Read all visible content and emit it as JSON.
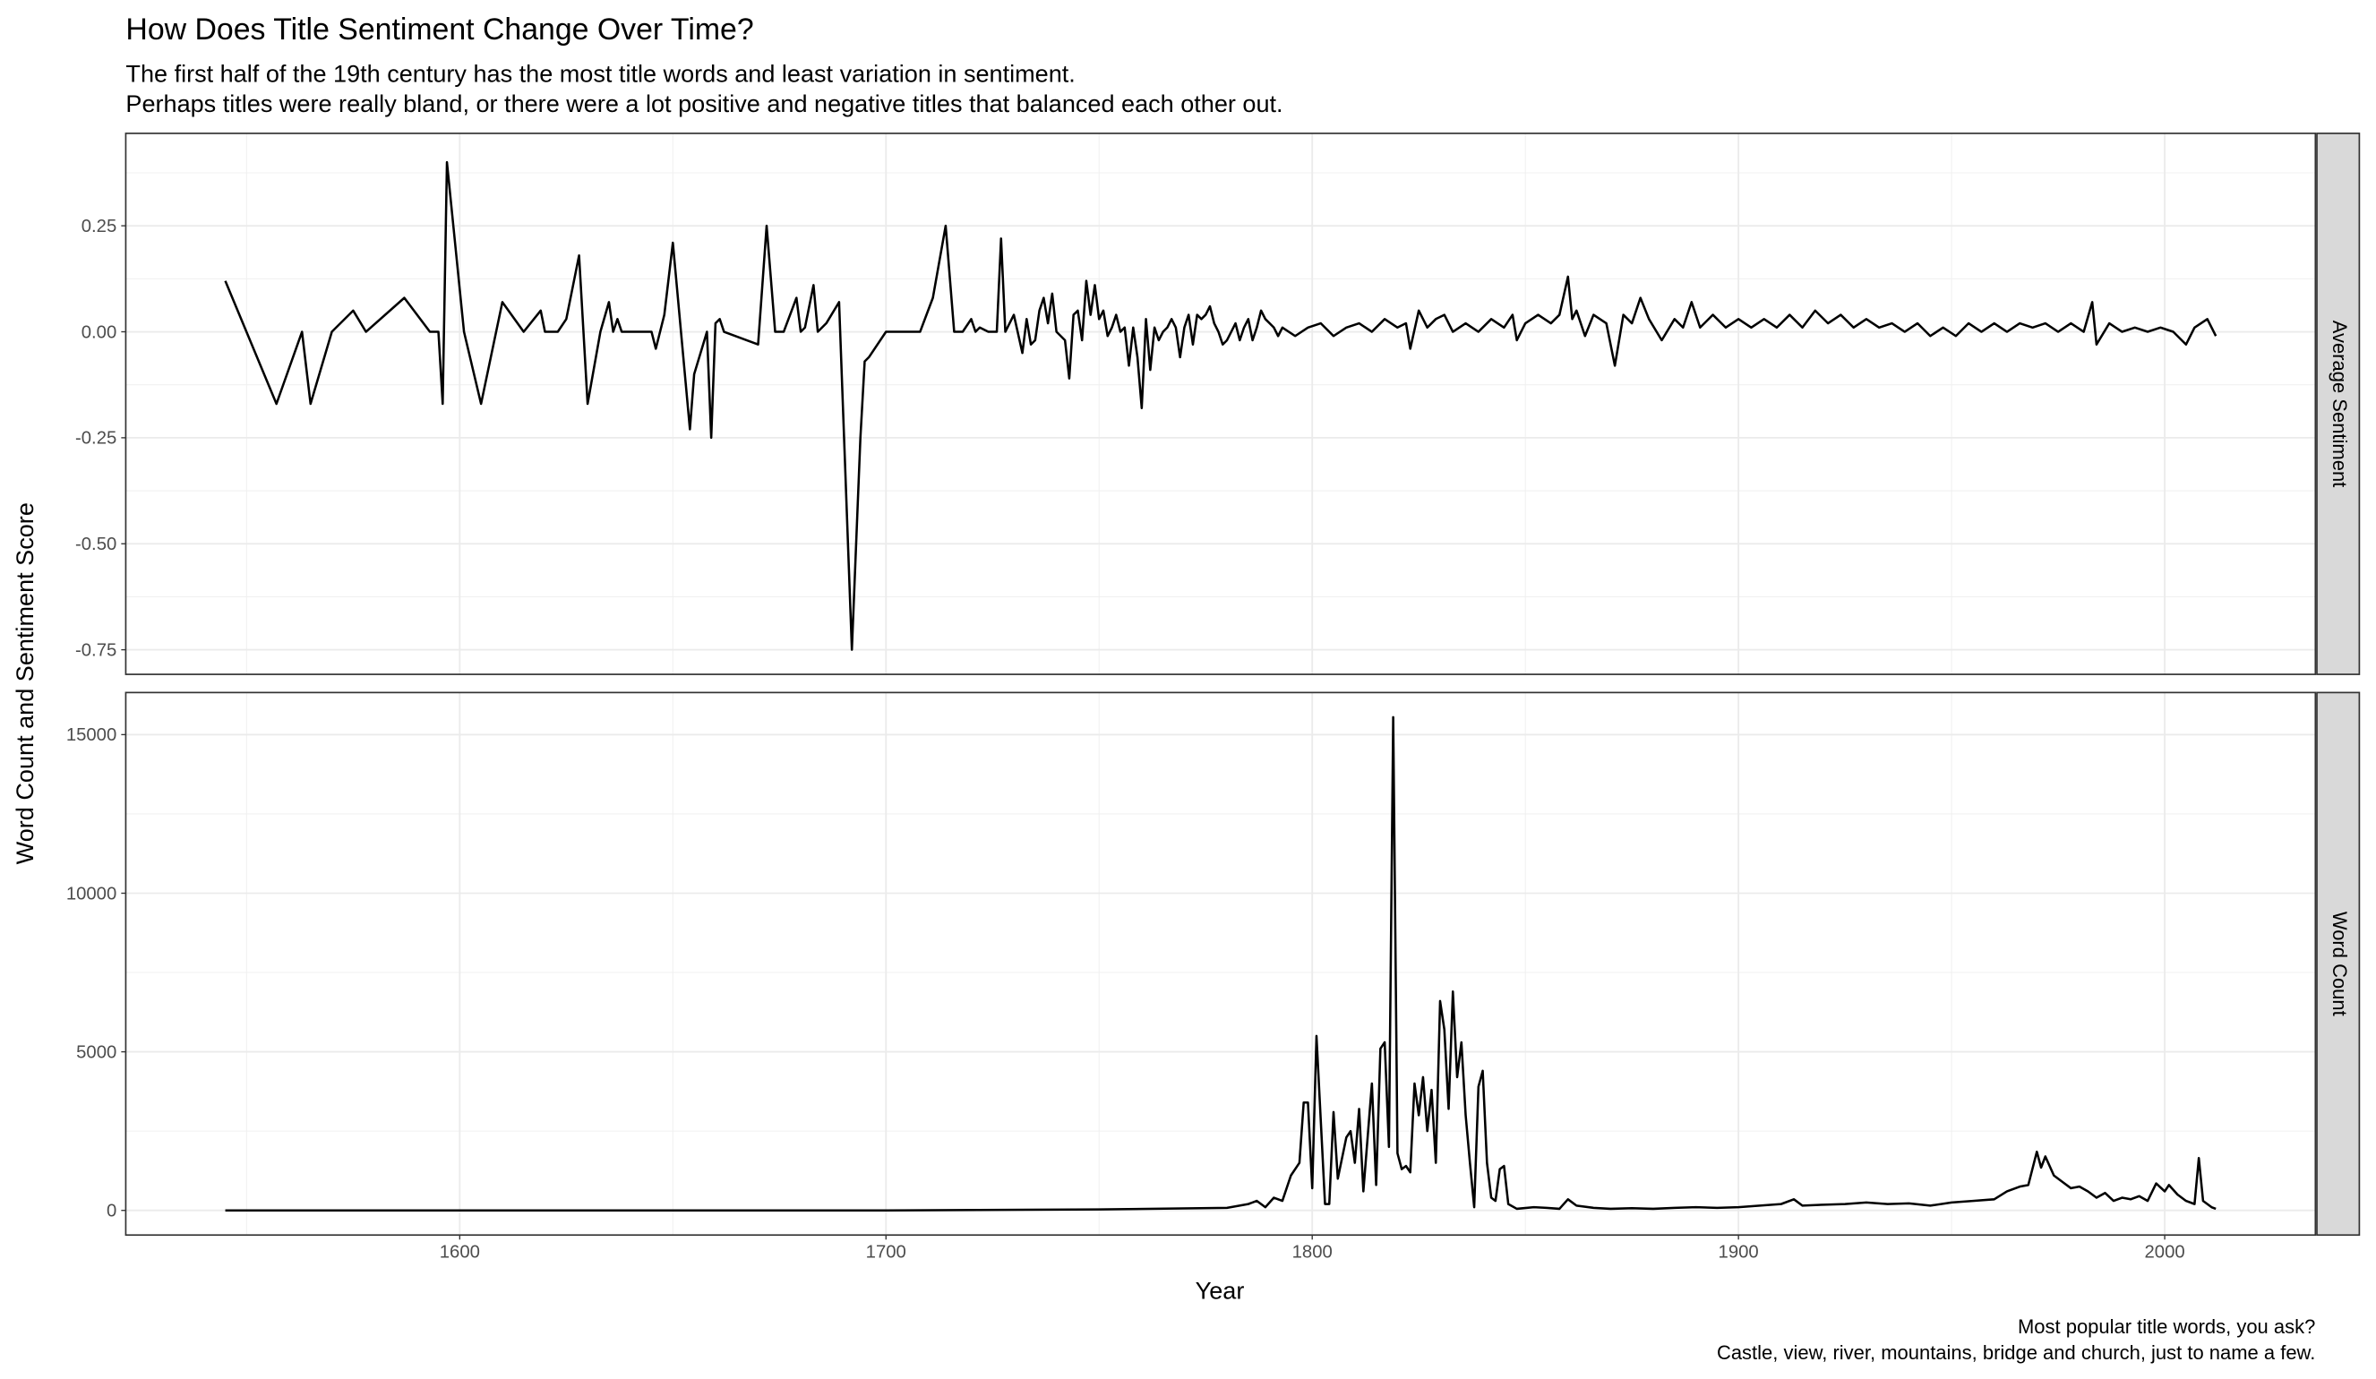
{
  "title": "How Does Title Sentiment Change Over Time?",
  "subtitle": [
    "The first half of the 19th century has the most title words and least variation in sentiment.",
    "Perhaps titles were really bland, or there were a lot positive and negative titles that balanced each other out."
  ],
  "x_label": "Year",
  "y_label": "Word Count and Sentiment Score",
  "caption": [
    "Most popular title words, you ask?",
    "Castle, view, river, mountains, bridge and church, just to name a few."
  ],
  "chart_data": [
    {
      "type": "line",
      "strip": "Average Sentiment",
      "color": "#000000",
      "grid": true,
      "xlim": [
        1521.65,
        2035.35
      ],
      "xticks": [
        1600,
        1700,
        1800,
        1900,
        2000
      ],
      "ylim": [
        -0.808,
        0.468
      ],
      "yticks": [
        -0.75,
        {
          "value": -0.5,
          "label": "-0.50"
        },
        -0.25,
        {
          "value": 0,
          "label": "0.00"
        },
        0.25
      ],
      "x": [
        1545,
        1557,
        1563,
        1565,
        1570,
        1575,
        1578,
        1587,
        1593,
        1595,
        1596,
        1597,
        1601,
        1605,
        1610,
        1615,
        1619,
        1620,
        1623,
        1625,
        1628,
        1630,
        1633,
        1635,
        1636,
        1637,
        1638,
        1645,
        1646,
        1648,
        1650,
        1654,
        1655,
        1658,
        1659,
        1660,
        1661,
        1662,
        1670,
        1672,
        1674,
        1676,
        1679,
        1680,
        1681,
        1683,
        1684,
        1686,
        1689,
        1692,
        1694,
        1695,
        1696,
        1700,
        1708,
        1711,
        1714,
        1716,
        1718,
        1720,
        1721,
        1722,
        1724,
        1726,
        1727,
        1728,
        1729,
        1730,
        1732,
        1733,
        1734,
        1735,
        1736,
        1737,
        1738,
        1739,
        1740,
        1742,
        1743,
        1744,
        1745,
        1746,
        1747,
        1748,
        1749,
        1750,
        1751,
        1752,
        1753,
        1754,
        1755,
        1756,
        1757,
        1758,
        1759,
        1760,
        1761,
        1762,
        1763,
        1764,
        1765,
        1766,
        1767,
        1768,
        1769,
        1770,
        1771,
        1772,
        1773,
        1774,
        1775,
        1776,
        1777,
        1778,
        1779,
        1780,
        1781,
        1782,
        1783,
        1784,
        1785,
        1786,
        1787,
        1788,
        1789,
        1790,
        1791,
        1792,
        1793,
        1796,
        1799,
        1802,
        1805,
        1808,
        1811,
        1814,
        1817,
        1820,
        1822,
        1823,
        1825,
        1827,
        1829,
        1831,
        1833,
        1836,
        1839,
        1842,
        1845,
        1847,
        1848,
        1850,
        1853,
        1856,
        1858,
        1860,
        1861,
        1862,
        1864,
        1866,
        1869,
        1871,
        1873,
        1875,
        1877,
        1879,
        1882,
        1885,
        1887,
        1889,
        1891,
        1894,
        1897,
        1900,
        1903,
        1906,
        1909,
        1912,
        1915,
        1918,
        1921,
        1924,
        1927,
        1930,
        1933,
        1936,
        1939,
        1942,
        1945,
        1948,
        1951,
        1954,
        1957,
        1960,
        1963,
        1966,
        1969,
        1972,
        1975,
        1978,
        1981,
        1983,
        1984,
        1987,
        1990,
        1993,
        1996,
        1999,
        2002,
        2005,
        2007,
        2010,
        2012
      ],
      "values": [
        0.12,
        -0.17,
        0,
        -0.17,
        0,
        0.05,
        0,
        0.08,
        0,
        0,
        -0.17,
        0.4,
        0,
        -0.17,
        0.07,
        0,
        0.05,
        0,
        0,
        0.03,
        0.18,
        -0.17,
        0,
        0.07,
        0,
        0.03,
        0,
        0,
        -0.04,
        0.04,
        0.21,
        -0.23,
        -0.1,
        0,
        -0.25,
        0.02,
        0.03,
        0,
        -0.03,
        0.25,
        0,
        0,
        0.08,
        0,
        0.01,
        0.11,
        0,
        0.02,
        0.07,
        -0.75,
        -0.25,
        -0.07,
        -0.06,
        0,
        0,
        0.08,
        0.25,
        0,
        0,
        0.03,
        0,
        0.01,
        0,
        0,
        0.22,
        0,
        0.02,
        0.04,
        -0.05,
        0.03,
        -0.03,
        -0.02,
        0.05,
        0.08,
        0.02,
        0.09,
        0,
        -0.02,
        -0.11,
        0.04,
        0.05,
        -0.02,
        0.12,
        0.04,
        0.11,
        0.03,
        0.05,
        -0.01,
        0.01,
        0.04,
        0,
        0.01,
        -0.08,
        0.01,
        -0.06,
        -0.18,
        0.03,
        -0.09,
        0.01,
        -0.02,
        0,
        0.01,
        0.03,
        0.01,
        -0.06,
        0.01,
        0.04,
        -0.03,
        0.04,
        0.03,
        0.04,
        0.06,
        0.02,
        0,
        -0.03,
        -0.02,
        0,
        0.02,
        -0.02,
        0.01,
        0.03,
        -0.02,
        0.01,
        0.05,
        0.03,
        0.02,
        0.01,
        -0.01,
        0.01,
        -0.01,
        0.01,
        0.02,
        -0.01,
        0.01,
        0.02,
        0,
        0.03,
        0.01,
        0.02,
        -0.04,
        0.05,
        0.01,
        0.03,
        0.04,
        0,
        0.02,
        0,
        0.03,
        0.01,
        0.04,
        -0.02,
        0.02,
        0.04,
        0.02,
        0.04,
        0.13,
        0.03,
        0.05,
        -0.01,
        0.04,
        0.02,
        -0.08,
        0.04,
        0.02,
        0.08,
        0.03,
        -0.02,
        0.03,
        0.01,
        0.07,
        0.01,
        0.04,
        0.01,
        0.03,
        0.01,
        0.03,
        0.01,
        0.04,
        0.01,
        0.05,
        0.02,
        0.04,
        0.01,
        0.03,
        0.01,
        0.02,
        0,
        0.02,
        -0.01,
        0.01,
        -0.01,
        0.02,
        0,
        0.02,
        0,
        0.02,
        0.01,
        0.02,
        0,
        0.02,
        0,
        0.07,
        -0.03,
        0.02,
        0,
        0.01,
        0,
        0.01,
        0,
        -0.03,
        0.01,
        0.03,
        -0.01
      ]
    },
    {
      "type": "line",
      "strip": "Word Count",
      "color": "#000000",
      "grid": true,
      "xlim": [
        1521.65,
        2035.35
      ],
      "xticks": [
        1600,
        1700,
        1800,
        1900,
        2000
      ],
      "ylim": [
        -777,
        16327
      ],
      "yticks": [
        0,
        5000,
        10000,
        15000
      ],
      "x": [
        1545,
        1700,
        1750,
        1780,
        1785,
        1787,
        1789,
        1791,
        1793,
        1795,
        1797,
        1798,
        1799,
        1800,
        1801,
        1803,
        1804,
        1805,
        1806,
        1808,
        1809,
        1810,
        1811,
        1812,
        1814,
        1815,
        1816,
        1817,
        1818,
        1819,
        1820,
        1821,
        1822,
        1823,
        1824,
        1825,
        1826,
        1827,
        1828,
        1829,
        1830,
        1831,
        1832,
        1833,
        1834,
        1835,
        1836,
        1837,
        1838,
        1839,
        1840,
        1841,
        1842,
        1843,
        1844,
        1845,
        1846,
        1848,
        1852,
        1855,
        1858,
        1860,
        1862,
        1866,
        1870,
        1875,
        1880,
        1885,
        1890,
        1895,
        1900,
        1905,
        1910,
        1913,
        1915,
        1920,
        1925,
        1930,
        1935,
        1940,
        1945,
        1950,
        1955,
        1960,
        1963,
        1966,
        1968,
        1970,
        1971,
        1972,
        1974,
        1976,
        1978,
        1980,
        1982,
        1984,
        1986,
        1988,
        1990,
        1992,
        1994,
        1996,
        1998,
        2000,
        2001,
        2003,
        2005,
        2007,
        2008,
        2009,
        2011,
        2012
      ],
      "values": [
        0,
        0,
        30,
        80,
        200,
        300,
        100,
        400,
        300,
        1100,
        1500,
        3400,
        3400,
        700,
        5500,
        200,
        200,
        3100,
        1000,
        2300,
        2500,
        1500,
        3200,
        600,
        4000,
        800,
        5100,
        5300,
        2000,
        15550,
        1800,
        1300,
        1400,
        1200,
        4000,
        3000,
        4200,
        2500,
        3800,
        1500,
        6600,
        5700,
        3200,
        6900,
        4200,
        5300,
        3000,
        1500,
        100,
        3900,
        4400,
        1500,
        400,
        300,
        1300,
        1400,
        200,
        50,
        100,
        80,
        50,
        350,
        150,
        80,
        50,
        70,
        50,
        80,
        100,
        80,
        100,
        150,
        200,
        350,
        150,
        180,
        200,
        250,
        200,
        220,
        150,
        250,
        300,
        350,
        600,
        750,
        800,
        1850,
        1350,
        1700,
        1100,
        900,
        700,
        750,
        600,
        400,
        550,
        300,
        400,
        350,
        450,
        300,
        850,
        600,
        800,
        500,
        300,
        200,
        1650,
        300,
        100,
        50
      ]
    }
  ]
}
